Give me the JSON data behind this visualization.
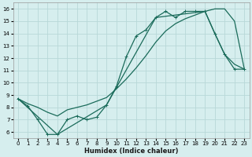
{
  "xlabel": "Humidex (Indice chaleur)",
  "bg_color": "#d6eeee",
  "grid_color": "#b8d8d8",
  "line_color": "#1a6b5a",
  "xlim": [
    -0.5,
    23.5
  ],
  "ylim": [
    5.5,
    16.5
  ],
  "xticks": [
    0,
    1,
    2,
    3,
    4,
    5,
    6,
    7,
    8,
    9,
    10,
    11,
    12,
    13,
    14,
    15,
    16,
    17,
    18,
    19,
    20,
    21,
    22,
    23
  ],
  "yticks": [
    6,
    7,
    8,
    9,
    10,
    11,
    12,
    13,
    14,
    15,
    16
  ],
  "series": [
    {
      "x": [
        0,
        1,
        2,
        3,
        4,
        5,
        6,
        7,
        8,
        9,
        10,
        11,
        12,
        13,
        14,
        15,
        16,
        17,
        18,
        19,
        20,
        21,
        22,
        23
      ],
      "y": [
        8.7,
        8.1,
        7.0,
        5.8,
        5.8,
        7.0,
        7.3,
        7.0,
        7.2,
        8.2,
        9.7,
        12.1,
        13.8,
        14.3,
        15.3,
        15.8,
        15.3,
        15.8,
        15.8,
        15.8,
        14.0,
        12.3,
        11.1,
        11.1
      ],
      "marker": "+"
    },
    {
      "x": [
        0,
        1,
        2,
        3,
        4,
        5,
        6,
        7,
        8,
        9,
        10,
        11,
        12,
        13,
        14,
        15,
        16,
        17,
        18,
        19,
        20,
        21,
        22,
        23
      ],
      "y": [
        8.7,
        8.3,
        8.0,
        7.6,
        7.3,
        7.8,
        8.0,
        8.2,
        8.5,
        8.8,
        9.5,
        10.3,
        11.2,
        12.2,
        13.3,
        14.2,
        14.8,
        15.2,
        15.5,
        15.8,
        16.0,
        16.0,
        15.0,
        11.1
      ],
      "marker": null
    },
    {
      "x": [
        0,
        4,
        9,
        14,
        19,
        20,
        21,
        22,
        23
      ],
      "y": [
        8.7,
        5.8,
        8.2,
        15.3,
        15.8,
        14.0,
        12.3,
        11.5,
        11.1
      ],
      "marker": null
    }
  ]
}
